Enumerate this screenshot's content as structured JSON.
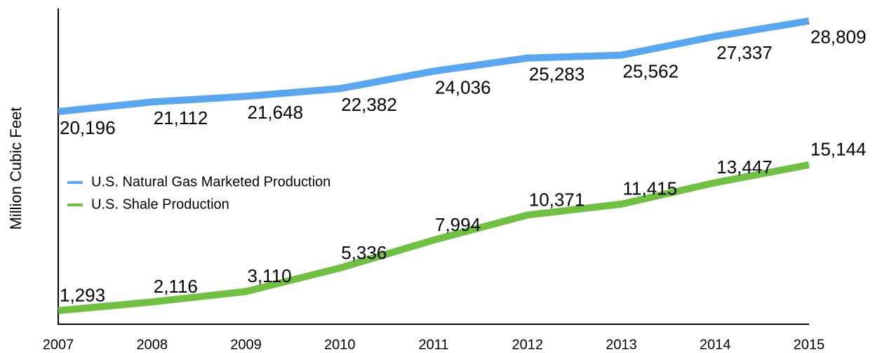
{
  "chart_data": {
    "type": "line",
    "y_label": "Million Cubic Feet",
    "categories": [
      "2007",
      "2008",
      "2009",
      "2010",
      "2011",
      "2012",
      "2013",
      "2014",
      "2015"
    ],
    "series": [
      {
        "name": "U.S. Natural Gas Marketed Production",
        "color": "#5aa7f0",
        "values": [
          20196,
          21112,
          21648,
          22382,
          24036,
          25283,
          25562,
          27337,
          28809
        ],
        "value_labels": [
          "20,196",
          "21,112",
          "21,648",
          "22,382",
          "24,036",
          "25,283",
          "25,562",
          "27,337",
          "28,809"
        ]
      },
      {
        "name": "U.S. Shale Production",
        "color": "#72c043",
        "values": [
          1293,
          2116,
          3110,
          5336,
          7994,
          10371,
          11415,
          13447,
          15144
        ],
        "value_labels": [
          "1,293",
          "2,116",
          "3,110",
          "5,336",
          "7,994",
          "10,371",
          "11,415",
          "13,447",
          "15,144"
        ]
      }
    ],
    "ylim": [
      0,
      30000
    ],
    "legend": "left"
  }
}
